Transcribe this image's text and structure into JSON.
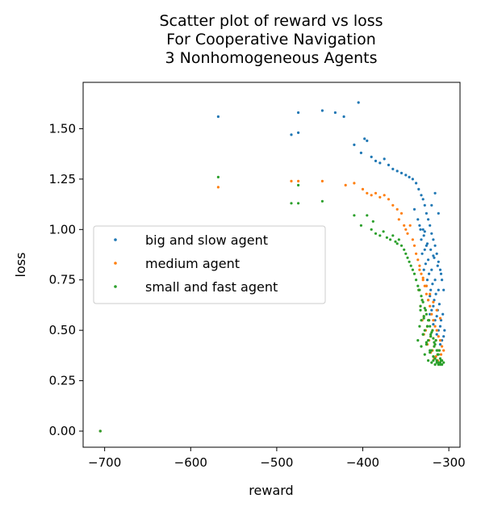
{
  "chart_data": {
    "type": "scatter",
    "title": [
      "Scatter plot of reward vs loss",
      "For Cooperative Navigation",
      "3 Nonhomogeneous Agents"
    ],
    "xlabel": "reward",
    "ylabel": "loss",
    "xlim": [
      -725,
      -287
    ],
    "ylim": [
      -0.08,
      1.73
    ],
    "xticks": [
      -700,
      -600,
      -500,
      -400,
      -300
    ],
    "xtick_labels": [
      "−700",
      "−600",
      "−500",
      "−400",
      "−300"
    ],
    "yticks": [
      0.0,
      0.25,
      0.5,
      0.75,
      1.0,
      1.25,
      1.5
    ],
    "ytick_labels": [
      "0.00",
      "0.25",
      "0.50",
      "0.75",
      "1.00",
      "1.25",
      "1.50"
    ],
    "grid": false,
    "legend_position": "center-left",
    "series": [
      {
        "name": "big and slow agent",
        "color": "#1f77b4",
        "x": [
          -705,
          -568,
          -483,
          -475,
          -475,
          -447,
          -432,
          -422,
          -405,
          -410,
          -398,
          -402,
          -395,
          -390,
          -385,
          -380,
          -375,
          -370,
          -365,
          -360,
          -355,
          -350,
          -346,
          -342,
          -338,
          -335,
          -332,
          -330,
          -328,
          -326,
          -324,
          -322,
          -320,
          -318,
          -316,
          -314,
          -312,
          -310,
          -308,
          -306,
          -340,
          -336,
          -333,
          -329,
          -325,
          -321,
          -317,
          -313,
          -309,
          -332,
          -328,
          -324,
          -320,
          -316,
          -312,
          -331,
          -327,
          -323,
          -319,
          -315,
          -311,
          -307,
          -329,
          -325,
          -321,
          -317,
          -313,
          -309,
          -305,
          -326,
          -322,
          -318,
          -314,
          -310,
          -306,
          -324,
          -320,
          -316,
          -312,
          -308,
          -322,
          -318,
          -314,
          -310,
          -330,
          -326,
          -320,
          -316,
          -312,
          -334,
          -328,
          -318
        ],
        "y": [
          0.0,
          1.56,
          1.47,
          1.48,
          1.58,
          1.59,
          1.58,
          1.56,
          1.63,
          1.42,
          1.45,
          1.38,
          1.44,
          1.36,
          1.34,
          1.33,
          1.35,
          1.32,
          1.3,
          1.29,
          1.28,
          1.27,
          1.26,
          1.25,
          1.23,
          1.2,
          1.17,
          1.15,
          1.12,
          1.08,
          1.05,
          1.02,
          0.98,
          0.95,
          0.92,
          0.88,
          0.84,
          0.8,
          0.75,
          0.7,
          1.1,
          1.05,
          1.0,
          0.97,
          0.93,
          0.9,
          0.86,
          0.82,
          0.78,
          0.95,
          0.9,
          0.85,
          0.8,
          0.75,
          0.7,
          0.88,
          0.83,
          0.78,
          0.73,
          0.68,
          0.63,
          0.58,
          0.8,
          0.75,
          0.7,
          0.65,
          0.6,
          0.55,
          0.5,
          0.72,
          0.67,
          0.62,
          0.57,
          0.52,
          0.47,
          0.65,
          0.6,
          0.55,
          0.5,
          0.45,
          0.58,
          0.53,
          0.48,
          0.43,
          1.0,
          0.92,
          1.12,
          1.18,
          1.08,
          1.02,
          0.99,
          0.87
        ]
      },
      {
        "name": "medium agent",
        "color": "#ff7f0e",
        "x": [
          -705,
          -568,
          -483,
          -475,
          -447,
          -420,
          -410,
          -400,
          -395,
          -390,
          -385,
          -380,
          -375,
          -370,
          -365,
          -360,
          -358,
          -355,
          -352,
          -350,
          -348,
          -345,
          -342,
          -340,
          -338,
          -336,
          -334,
          -332,
          -330,
          -328,
          -326,
          -324,
          -322,
          -320,
          -318,
          -316,
          -314,
          -312,
          -310,
          -308,
          -306,
          -335,
          -331,
          -327,
          -323,
          -319,
          -315,
          -311,
          -333,
          -329,
          -325,
          -321,
          -317,
          -313,
          -309,
          -331,
          -327,
          -323,
          -319,
          -315,
          -311,
          -329,
          -325,
          -321,
          -317,
          -313,
          -309,
          -334,
          -330,
          -326,
          -322,
          -318,
          -314,
          -310
        ],
        "y": [
          0.0,
          1.21,
          1.24,
          1.24,
          1.24,
          1.22,
          1.23,
          1.2,
          1.18,
          1.17,
          1.18,
          1.16,
          1.17,
          1.15,
          1.12,
          1.1,
          1.05,
          1.08,
          1.02,
          1.0,
          0.98,
          1.02,
          0.95,
          0.92,
          0.88,
          0.85,
          0.82,
          0.78,
          0.75,
          0.72,
          0.68,
          0.65,
          0.62,
          0.58,
          0.55,
          0.52,
          0.5,
          0.47,
          0.45,
          0.42,
          0.4,
          0.7,
          0.65,
          0.6,
          0.55,
          0.5,
          0.45,
          0.4,
          0.62,
          0.57,
          0.52,
          0.47,
          0.42,
          0.38,
          0.35,
          0.55,
          0.5,
          0.45,
          0.4,
          0.37,
          0.34,
          0.48,
          0.43,
          0.39,
          0.36,
          0.35,
          0.38,
          0.8,
          0.76,
          0.72,
          0.68,
          0.64,
          0.6,
          0.56
        ]
      },
      {
        "name": "small and fast agent",
        "color": "#2ca02c",
        "x": [
          -705,
          -568,
          -483,
          -475,
          -475,
          -447,
          -410,
          -402,
          -395,
          -390,
          -388,
          -385,
          -380,
          -376,
          -372,
          -368,
          -365,
          -362,
          -360,
          -358,
          -355,
          -352,
          -350,
          -348,
          -346,
          -344,
          -342,
          -340,
          -338,
          -336,
          -334,
          -332,
          -330,
          -328,
          -326,
          -324,
          -322,
          -320,
          -318,
          -316,
          -314,
          -312,
          -310,
          -308,
          -306,
          -335,
          -331,
          -327,
          -323,
          -319,
          -315,
          -311,
          -333,
          -329,
          -325,
          -321,
          -317,
          -313,
          -309,
          -332,
          -328,
          -324,
          -320,
          -316,
          -312,
          -308,
          -330,
          -326,
          -322,
          -318,
          -314,
          -310,
          -336,
          -332,
          -328,
          -324,
          -320,
          -316,
          -312,
          -334,
          -330,
          -326,
          -322,
          -318,
          -314,
          -310,
          -333,
          -329,
          -325,
          -321,
          -317,
          -313
        ],
        "y": [
          0.0,
          1.26,
          1.13,
          1.13,
          1.22,
          1.14,
          1.07,
          1.02,
          1.07,
          1.0,
          1.04,
          0.98,
          0.97,
          0.99,
          0.96,
          0.95,
          0.97,
          0.94,
          0.93,
          0.95,
          0.92,
          0.9,
          0.88,
          0.86,
          0.84,
          0.82,
          0.8,
          0.78,
          0.75,
          0.72,
          0.7,
          0.67,
          0.64,
          0.61,
          0.58,
          0.55,
          0.52,
          0.49,
          0.46,
          0.43,
          0.4,
          0.38,
          0.36,
          0.35,
          0.34,
          0.7,
          0.65,
          0.6,
          0.55,
          0.5,
          0.45,
          0.4,
          0.62,
          0.57,
          0.52,
          0.47,
          0.42,
          0.38,
          0.35,
          0.55,
          0.5,
          0.45,
          0.4,
          0.36,
          0.34,
          0.33,
          0.48,
          0.43,
          0.39,
          0.35,
          0.34,
          0.33,
          0.45,
          0.42,
          0.38,
          0.35,
          0.34,
          0.33,
          0.33,
          0.52,
          0.48,
          0.44,
          0.4,
          0.37,
          0.35,
          0.34,
          0.6,
          0.56,
          0.52,
          0.48,
          0.44,
          0.4
        ]
      }
    ]
  }
}
